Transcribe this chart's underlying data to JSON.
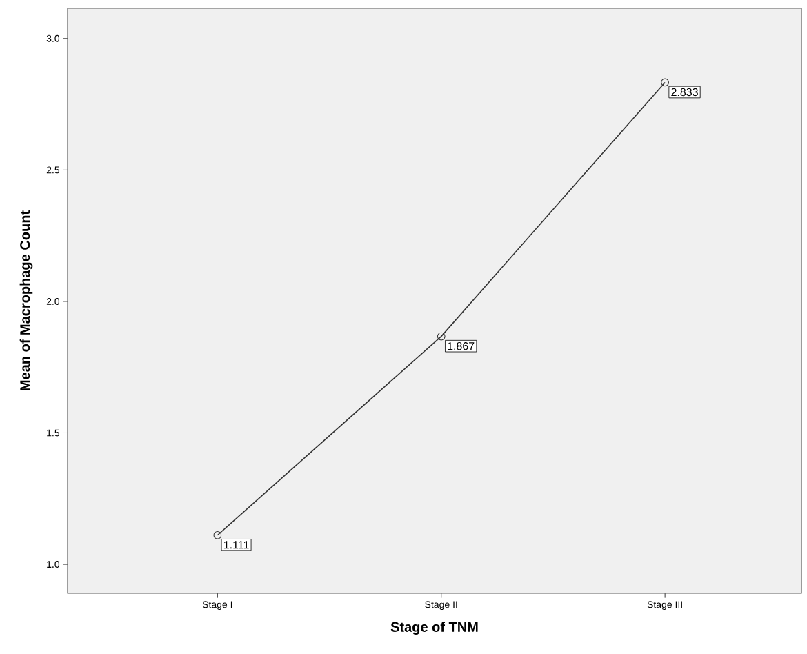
{
  "chart_data": {
    "type": "line",
    "xlabel": "Stage of TNM",
    "ylabel": "Mean of Macrophage Count",
    "categories": [
      "Stage I",
      "Stage II",
      "Stage III"
    ],
    "series": [
      {
        "color": "#333333",
        "values": [
          1.111,
          1.867,
          2.833
        ]
      }
    ],
    "ylim": [
      0.89,
      3.115
    ],
    "yticks": [
      {
        "value": 1,
        "label": "1.0"
      },
      {
        "value": 1.5,
        "label": "1.5"
      },
      {
        "value": 2,
        "label": "2.0"
      },
      {
        "value": 2.5,
        "label": "2.5"
      },
      {
        "value": 3,
        "label": "3.0"
      }
    ],
    "data_labels": true,
    "grid": false,
    "marker": "circle",
    "line_style": "solid"
  }
}
